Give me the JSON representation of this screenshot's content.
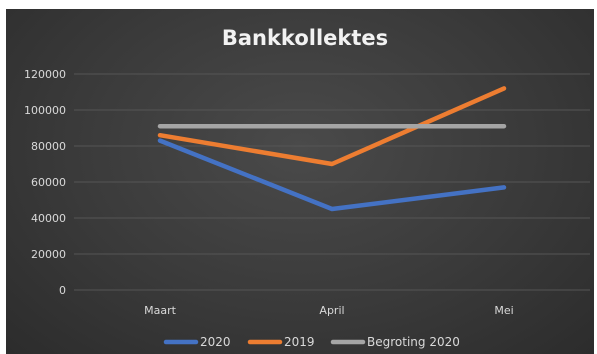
{
  "chart_data": {
    "type": "line",
    "title": "Bankkollektes",
    "categories": [
      "Maart",
      "April",
      "Mei"
    ],
    "ylim": [
      0,
      120000
    ],
    "yticks": [
      0,
      20000,
      40000,
      60000,
      80000,
      100000,
      120000
    ],
    "ytick_labels": [
      "0",
      "20000",
      "40000",
      "60000",
      "80000",
      "100000",
      "120000"
    ],
    "grid": true,
    "legend_position": "bottom",
    "series": [
      {
        "name": "2020",
        "values": [
          83000,
          45000,
          57000
        ],
        "color": "#4472c4"
      },
      {
        "name": "2019",
        "values": [
          86000,
          70000,
          112000
        ],
        "color": "#ed7d31"
      },
      {
        "name": "Begroting 2020",
        "values": [
          91000,
          91000,
          91000
        ],
        "color": "#a5a5a5"
      }
    ]
  }
}
